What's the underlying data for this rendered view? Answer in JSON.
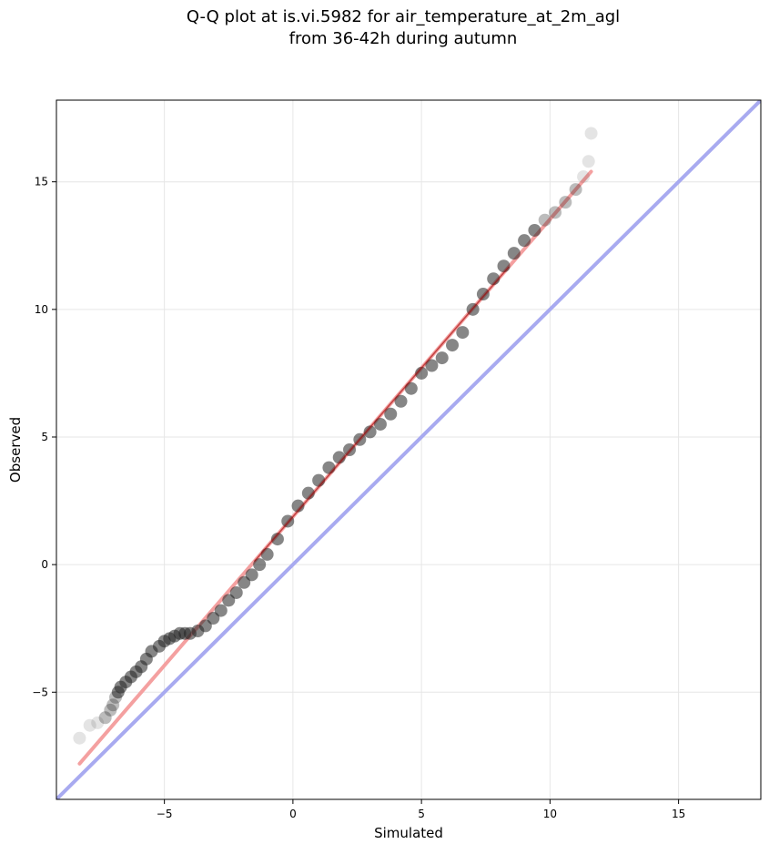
{
  "chart_data": {
    "type": "scatter",
    "title_line1": "Q-Q plot at is.vi.5982 for air_temperature_at_2m_agl",
    "title_line2": "from 36-42h during autumn",
    "xlabel": "Simulated",
    "ylabel": "Observed",
    "xlim": [
      -9.2,
      18.2
    ],
    "ylim": [
      -9.2,
      18.2
    ],
    "xticks": [
      -5,
      0,
      5,
      10,
      15
    ],
    "yticks": [
      -5,
      0,
      5,
      10,
      15
    ],
    "xtick_labels": [
      "−5",
      "0",
      "5",
      "10",
      "15"
    ],
    "ytick_labels": [
      "−5",
      "0",
      "5",
      "10",
      "15"
    ],
    "grid": true,
    "colors": {
      "points": "#222222",
      "fit_line": "#f4a0a0",
      "fit_line_inner": "#a00000",
      "identity_line": "#a8aaf0",
      "grid": "#e6e6e6"
    },
    "series": [
      {
        "kind": "points",
        "x": [
          -8.3,
          -7.9,
          -7.6,
          -7.3,
          -7.1,
          -7.0,
          -6.9,
          -6.8,
          -6.7,
          -6.5,
          -6.3,
          -6.1,
          -5.9,
          -5.7,
          -5.5,
          -5.2,
          -5.0,
          -4.8,
          -4.6,
          -4.4,
          -4.2,
          -4.0,
          -3.7,
          -3.4,
          -3.1,
          -2.8,
          -2.5,
          -2.2,
          -1.9,
          -1.6,
          -1.3,
          -1.0,
          -0.6,
          -0.2,
          0.2,
          0.6,
          1.0,
          1.4,
          1.8,
          2.2,
          2.6,
          3.0,
          3.4,
          3.8,
          4.2,
          4.6,
          5.0,
          5.4,
          5.8,
          6.2,
          6.6,
          7.0,
          7.4,
          7.8,
          8.2,
          8.6,
          9.0,
          9.4,
          9.8,
          10.2,
          10.6,
          11.0,
          11.3,
          11.5,
          11.6
        ],
        "y": [
          -6.8,
          -6.3,
          -6.2,
          -6.0,
          -5.7,
          -5.5,
          -5.2,
          -5.0,
          -4.8,
          -4.6,
          -4.4,
          -4.2,
          -4.0,
          -3.7,
          -3.4,
          -3.2,
          -3.0,
          -2.9,
          -2.8,
          -2.7,
          -2.7,
          -2.7,
          -2.6,
          -2.4,
          -2.1,
          -1.8,
          -1.4,
          -1.1,
          -0.7,
          -0.4,
          0.0,
          0.4,
          1.0,
          1.7,
          2.3,
          2.8,
          3.3,
          3.8,
          4.2,
          4.5,
          4.9,
          5.2,
          5.5,
          5.9,
          6.4,
          6.9,
          7.5,
          7.8,
          8.1,
          8.6,
          9.1,
          10.0,
          10.6,
          11.2,
          11.7,
          12.2,
          12.7,
          13.1,
          13.5,
          13.8,
          14.2,
          14.7,
          15.2,
          15.8,
          16.9
        ]
      },
      {
        "kind": "fit_line",
        "x": [
          -8.3,
          11.6
        ],
        "y": [
          -7.8,
          15.4
        ]
      },
      {
        "kind": "identity_line",
        "x": [
          -9.2,
          18.2
        ],
        "y": [
          -9.2,
          18.2
        ]
      }
    ]
  }
}
